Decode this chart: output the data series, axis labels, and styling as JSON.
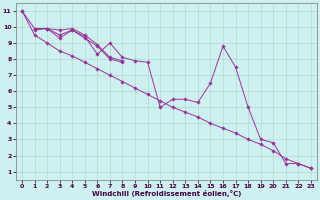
{
  "xlabel": "Windchill (Refroidissement éolien,°C)",
  "bg_color": "#cff0f0",
  "grid_color": "#aaddcc",
  "line_color": "#993399",
  "xlim": [
    -0.5,
    23.5
  ],
  "ylim": [
    0.5,
    11.5
  ],
  "xticks": [
    0,
    1,
    2,
    3,
    4,
    5,
    6,
    7,
    8,
    9,
    10,
    11,
    12,
    13,
    14,
    15,
    16,
    17,
    18,
    19,
    20,
    21,
    22,
    23
  ],
  "yticks": [
    1,
    2,
    3,
    4,
    5,
    6,
    7,
    8,
    9,
    10,
    11
  ],
  "series": {
    "smooth": [
      [
        0,
        11
      ],
      [
        1,
        9.5
      ],
      [
        2,
        9.0
      ],
      [
        3,
        8.5
      ],
      [
        4,
        8.2
      ],
      [
        5,
        7.8
      ],
      [
        6,
        7.4
      ],
      [
        7,
        7.0
      ],
      [
        8,
        6.6
      ],
      [
        9,
        6.2
      ],
      [
        10,
        5.8
      ],
      [
        11,
        5.4
      ],
      [
        12,
        5.0
      ],
      [
        13,
        4.7
      ],
      [
        14,
        4.4
      ],
      [
        15,
        4.0
      ],
      [
        16,
        3.7
      ],
      [
        17,
        3.4
      ],
      [
        18,
        3.0
      ],
      [
        19,
        2.7
      ],
      [
        20,
        2.3
      ],
      [
        21,
        1.8
      ],
      [
        22,
        1.5
      ],
      [
        23,
        1.2
      ]
    ],
    "jagged1": [
      [
        0,
        11
      ],
      [
        1,
        9.9
      ],
      [
        2,
        9.9
      ],
      [
        3,
        9.3
      ],
      [
        4,
        9.8
      ],
      [
        5,
        9.4
      ],
      [
        6,
        8.3
      ],
      [
        7,
        9.0
      ],
      [
        8,
        8.1
      ],
      [
        9,
        7.9
      ],
      [
        10,
        7.8
      ],
      [
        11,
        5.0
      ],
      [
        12,
        5.5
      ],
      [
        13,
        5.5
      ],
      [
        14,
        5.3
      ],
      [
        15,
        6.5
      ],
      [
        16,
        8.8
      ],
      [
        17,
        7.5
      ],
      [
        18,
        5.0
      ],
      [
        19,
        3.0
      ],
      [
        20,
        2.8
      ],
      [
        21,
        1.5
      ],
      [
        22,
        1.5
      ],
      [
        23,
        1.2
      ]
    ],
    "upper1": [
      [
        1,
        9.9
      ],
      [
        2,
        9.9
      ],
      [
        3,
        9.8
      ],
      [
        4,
        9.9
      ],
      [
        5,
        9.5
      ],
      [
        6,
        8.9
      ],
      [
        7,
        8.1
      ],
      [
        8,
        7.9
      ]
    ],
    "upper2": [
      [
        1,
        9.8
      ],
      [
        2,
        9.9
      ],
      [
        3,
        9.5
      ],
      [
        4,
        9.8
      ],
      [
        5,
        9.3
      ],
      [
        6,
        8.8
      ],
      [
        7,
        8.0
      ],
      [
        8,
        7.8
      ]
    ]
  }
}
